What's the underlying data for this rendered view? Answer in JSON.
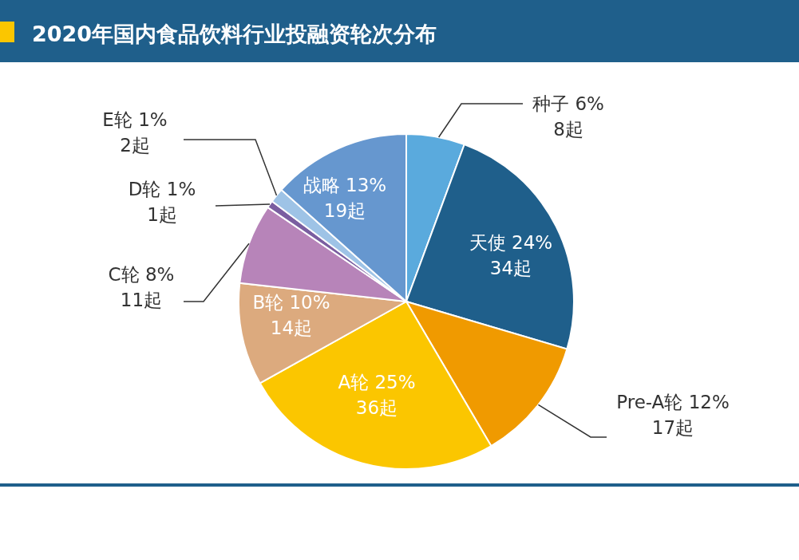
{
  "chart_data": {
    "type": "pie",
    "title": "2020年国内食品饮料行业投融资轮次分布",
    "categories": [
      "种子",
      "天使",
      "Pre-A轮",
      "A轮",
      "B轮",
      "C轮",
      "D轮",
      "E轮",
      "战略"
    ],
    "values": [
      8,
      34,
      17,
      36,
      14,
      11,
      1,
      2,
      19
    ],
    "value_labels": [
      "6%\n8起",
      "24%\n34起",
      "12%\n17起",
      "25%\n36起",
      "10%\n14起",
      "8%\n11起",
      "1%\n1起",
      "1%\n2起",
      "13%\n19起"
    ],
    "colors": [
      "#5aaadd",
      "#1f5f8b",
      "#f09a00",
      "#fbc600",
      "#dcaa7e",
      "#b784b9",
      "#7a5ea0",
      "#9ec3e6",
      "#6697cf"
    ],
    "legend": false
  }
}
